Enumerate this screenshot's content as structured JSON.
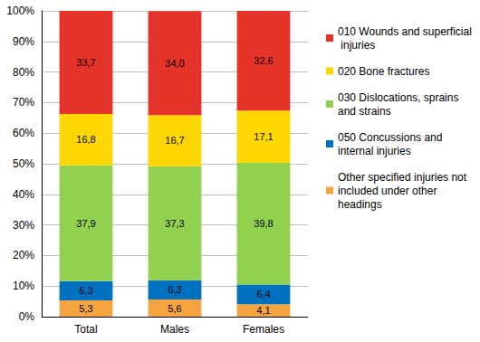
{
  "chart_data": {
    "type": "bar",
    "stacked": true,
    "data_labels": true,
    "grid": true,
    "legend": "right",
    "categories": [
      "Total",
      "Males",
      "Females"
    ],
    "ylim": [
      0,
      100
    ],
    "yticks": [
      {
        "value": 0,
        "label": "0%"
      },
      {
        "value": 10,
        "label": "10%"
      },
      {
        "value": 20,
        "label": "20%"
      },
      {
        "value": 30,
        "label": "30%"
      },
      {
        "value": 40,
        "label": "40%"
      },
      {
        "value": 50,
        "label": "50%"
      },
      {
        "value": 60,
        "label": "60%"
      },
      {
        "value": 70,
        "label": "70%"
      },
      {
        "value": 80,
        "label": "80%"
      },
      {
        "value": 90,
        "label": "90%"
      },
      {
        "value": 100,
        "label": "100%"
      }
    ],
    "series": [
      {
        "name": "Other specified injuries not included under other headings",
        "color": "#f4a540",
        "values": [
          5.3,
          5.6,
          4.1
        ],
        "value_labels": [
          "5,3",
          "5,6",
          "4,1"
        ]
      },
      {
        "name": "050 Concussions and internal injuries",
        "color": "#0070c0",
        "values": [
          6.3,
          6.3,
          6.4
        ],
        "value_labels": [
          "6,3",
          "6,3",
          "6,4"
        ]
      },
      {
        "name": "030 Dislocations, sprains and strains",
        "color": "#92d050",
        "values": [
          37.9,
          37.3,
          39.8
        ],
        "value_labels": [
          "37,9",
          "37,3",
          "39,8"
        ]
      },
      {
        "name": "020 Bone fractures",
        "color": "#ffd700",
        "values": [
          16.8,
          16.7,
          17.1
        ],
        "value_labels": [
          "16,8",
          "16,7",
          "17,1"
        ]
      },
      {
        "name": "010 Wounds and superficial injuries",
        "color": "#e5332a",
        "values": [
          33.7,
          34.0,
          32.6
        ],
        "value_labels": [
          "33,7",
          "34,0",
          "32,6"
        ]
      }
    ]
  }
}
